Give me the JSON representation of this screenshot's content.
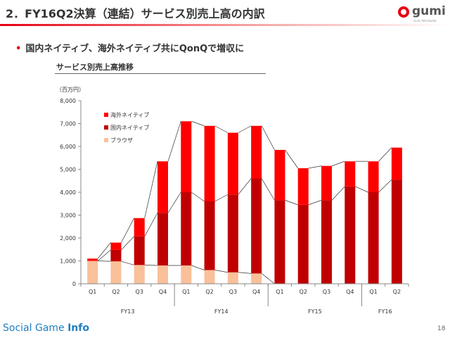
{
  "header": {
    "title": "2．FY16Q2決算（連結）サービス別売上高の内訳",
    "logo_text": "gumi",
    "logo_sub": "Gumi Worldwide"
  },
  "bullet": {
    "marker": "•",
    "text": "国内ネイティブ、海外ネイティブ共にQonQで増収に"
  },
  "chart_title": "サービス別売上高推移",
  "unit_label": "（百万円）",
  "chart_data": {
    "type": "bar",
    "stacked": true,
    "categories": [
      "Q1",
      "Q2",
      "Q3",
      "Q4",
      "Q1",
      "Q2",
      "Q3",
      "Q4",
      "Q1",
      "Q2",
      "Q3",
      "Q4",
      "Q1",
      "Q2"
    ],
    "fiscal_groups": [
      {
        "label": "FY13",
        "count": 4
      },
      {
        "label": "FY14",
        "count": 4
      },
      {
        "label": "FY15",
        "count": 4
      },
      {
        "label": "FY16",
        "count": 2
      }
    ],
    "series": [
      {
        "name": "ブラウザ",
        "color": "#f9c09a",
        "values": [
          1000,
          980,
          820,
          800,
          800,
          600,
          500,
          450,
          0,
          0,
          0,
          0,
          0,
          0
        ]
      },
      {
        "name": "国内ネイティブ",
        "color": "#c00000",
        "values": [
          0,
          500,
          1250,
          2300,
          3200,
          3000,
          3400,
          4150,
          3650,
          3450,
          3650,
          4250,
          4000,
          4550
        ]
      },
      {
        "name": "海外ネイティブ",
        "color": "#ff0000",
        "values": [
          100,
          320,
          800,
          2250,
          3100,
          3300,
          2700,
          2300,
          2200,
          1600,
          1500,
          1100,
          1350,
          1400
        ]
      }
    ],
    "ylim": [
      0,
      8000
    ],
    "yticks": [
      0,
      1000,
      2000,
      3000,
      4000,
      5000,
      6000,
      7000,
      8000
    ],
    "ytick_labels": [
      "0",
      "1,000",
      "2,000",
      "3,000",
      "4,000",
      "5,000",
      "6,000",
      "7,000",
      "8,000"
    ],
    "legend_order": [
      "海外ネイティブ",
      "国内ネイティブ",
      "ブラウザ"
    ],
    "legend_position": "top-left",
    "connector_lines": true,
    "grid": false
  },
  "footer": {
    "brand_light": "Social Game ",
    "brand_bold": "Info",
    "page_number": "18"
  }
}
